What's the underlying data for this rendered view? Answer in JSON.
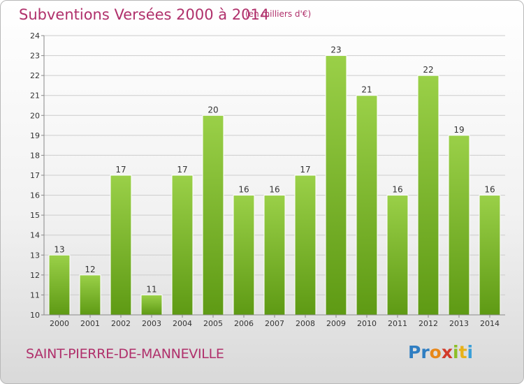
{
  "header": {
    "title": "Subventions Versées 2000 à 2014",
    "subtitle": "(en milliers d'€)"
  },
  "footer": {
    "commune": "SAINT-PIERRE-DE-MANNEVILLE",
    "logo_text": "Proxiti"
  },
  "colors": {
    "title": "#b0306b",
    "bar_top": "#9ad048",
    "bar_bottom": "#5e9a14",
    "grid": "#cccccc"
  },
  "chart_data": {
    "type": "bar",
    "title": "Subventions Versées 2000 à 2014",
    "subtitle": "(en milliers d'€)",
    "categories": [
      "2000",
      "2001",
      "2002",
      "2003",
      "2004",
      "2005",
      "2006",
      "2007",
      "2008",
      "2009",
      "2010",
      "2011",
      "2012",
      "2013",
      "2014"
    ],
    "values": [
      13,
      12,
      17,
      11,
      17,
      20,
      16,
      16,
      17,
      23,
      21,
      16,
      22,
      19,
      16
    ],
    "yticks": [
      10,
      11,
      12,
      13,
      14,
      15,
      16,
      17,
      18,
      19,
      20,
      21,
      22,
      23,
      24
    ],
    "ylim": [
      10,
      24
    ],
    "grid": true,
    "legend": "none",
    "xlabel": "",
    "ylabel": ""
  }
}
